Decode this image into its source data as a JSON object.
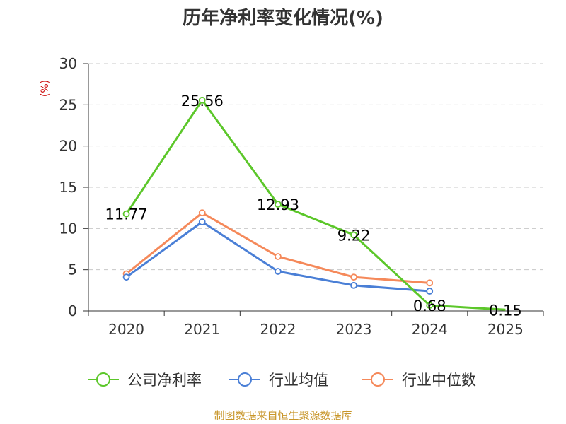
{
  "chart_data": {
    "type": "line",
    "title": "历年净利率变化情况(%)",
    "ylabel": "(%)",
    "categories": [
      "2020",
      "2021",
      "2022",
      "2023",
      "2024",
      "2025"
    ],
    "ylim": [
      0,
      30
    ],
    "yticks": [
      0,
      5,
      10,
      15,
      20,
      25,
      30
    ],
    "grid": true,
    "legend_position": "bottom",
    "series": [
      {
        "name": "公司净利率",
        "color": "#5cc72a",
        "values": [
          11.77,
          25.56,
          12.93,
          9.22,
          0.68,
          0.15
        ],
        "labels": [
          "11.77",
          "25.56",
          "12.93",
          "9.22",
          "0.68",
          "0.15"
        ],
        "markers_upto": 4
      },
      {
        "name": "行业均值",
        "color": "#4a7fd6",
        "values": [
          4.1,
          10.8,
          4.8,
          3.1,
          2.4,
          null
        ]
      },
      {
        "name": "行业中位数",
        "color": "#f5895a",
        "values": [
          4.5,
          11.9,
          6.6,
          4.1,
          3.4,
          null
        ]
      }
    ],
    "source": "制图数据来自恒生聚源数据库"
  }
}
